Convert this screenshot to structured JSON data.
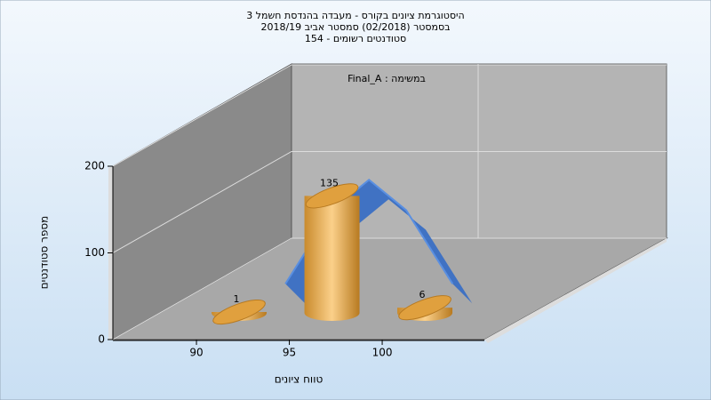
{
  "chart_data": {
    "type": "bar3d",
    "title": [
      "היסטוגרמת ציונים בקורס - מעבדה בהנדסת חשמל 3",
      "בסמסטר (02/2018) סמסטר אביב 2018/19",
      "סטודנטים רשומים - 154"
    ],
    "annotation": "במשימה : Final_A",
    "x_label": "טווח ציונים",
    "y_label": "מספר סטודנטים",
    "categories": [
      "90",
      "95",
      "100"
    ],
    "x": [
      90,
      95,
      100
    ],
    "values": [
      1,
      135,
      6
    ],
    "color": "#e8a23c",
    "curve": {
      "x": [
        89.5,
        92,
        94,
        96,
        98.5
      ],
      "values": [
        0,
        85,
        120,
        85,
        0
      ],
      "color": "#3a6fc4"
    },
    "xlim": [
      85.5,
      105.5
    ],
    "ylim": [
      0,
      200
    ],
    "yticks": [
      0,
      100,
      200
    ],
    "grid": true
  }
}
